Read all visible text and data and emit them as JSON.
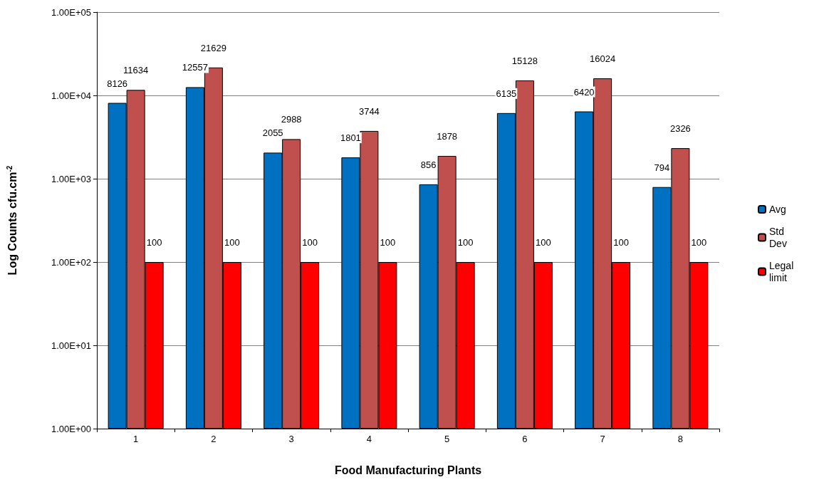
{
  "chart_data": {
    "type": "bar",
    "xlabel": "Food Manufacturing Plants",
    "ylabel": "Log Counts cfu.cm$^{-2}$",
    "categories": [
      "1",
      "2",
      "3",
      "4",
      "5",
      "6",
      "7",
      "8"
    ],
    "series": [
      {
        "name": "Avg",
        "color": "#0070c0",
        "values": [
          8126,
          12557,
          2055,
          1801,
          856,
          6135,
          6420,
          794
        ]
      },
      {
        "name": "Std Dev",
        "color": "#c0504d",
        "values": [
          11634,
          21629,
          2988,
          3744,
          1878,
          15128,
          16024,
          2326
        ]
      },
      {
        "name": "Legal limit",
        "color": "#ff0000",
        "values": [
          100,
          100,
          100,
          100,
          100,
          100,
          100,
          100
        ]
      }
    ],
    "log": "y",
    "ylim": [
      1,
      100000
    ],
    "yticks": [
      {
        "value": 1,
        "label": "1.00E+00"
      },
      {
        "value": 10,
        "label": "1.00E+01"
      },
      {
        "value": 100,
        "label": "1.00E+02"
      },
      {
        "value": 1000,
        "label": "1.00E+03"
      },
      {
        "value": 10000,
        "label": "1.00E+04"
      },
      {
        "value": 100000,
        "label": "1.00E+05"
      }
    ],
    "grid": "y",
    "legend": "right",
    "data_labels": true
  }
}
